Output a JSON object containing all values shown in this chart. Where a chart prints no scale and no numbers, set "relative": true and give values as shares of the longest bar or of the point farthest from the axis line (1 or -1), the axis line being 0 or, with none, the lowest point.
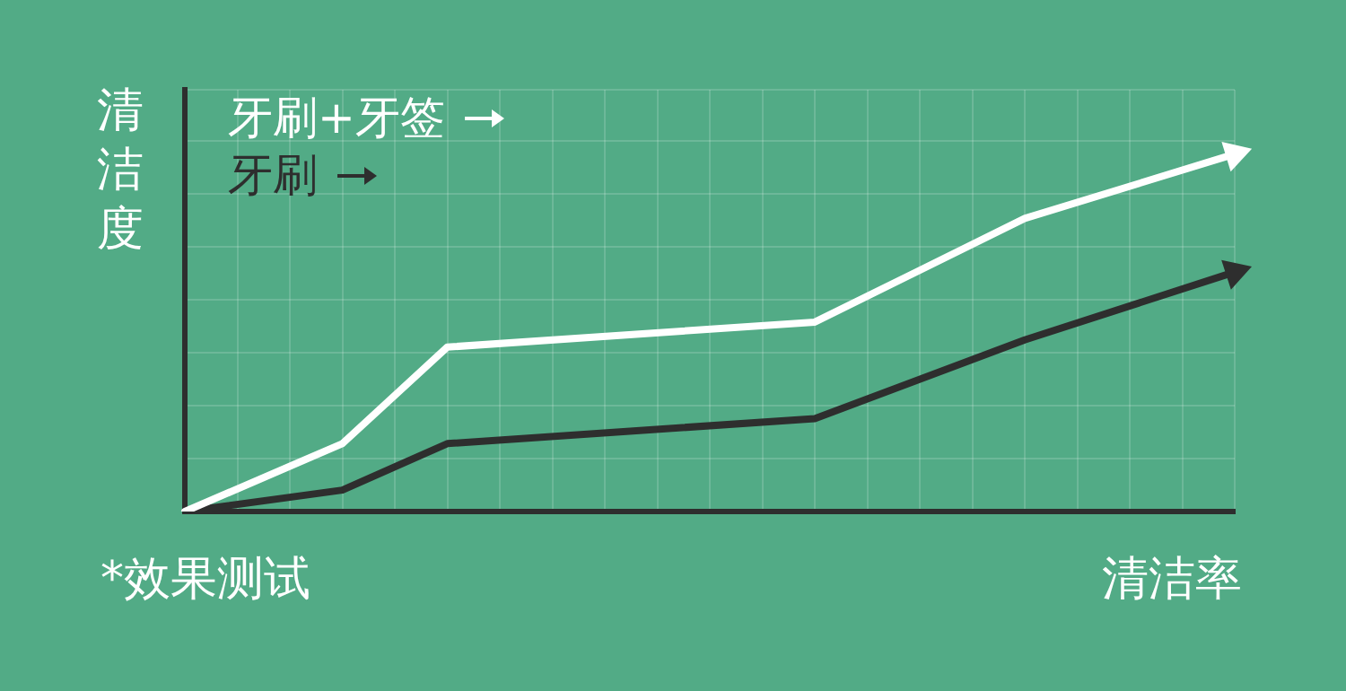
{
  "chart_data": {
    "type": "line",
    "relative": true,
    "ylabel": "清洁度",
    "xlabel": "清洁率",
    "annotations": [
      "*效果测试"
    ],
    "categories": [
      null,
      null,
      null,
      null,
      null,
      null,
      null,
      null,
      null,
      null,
      null,
      null,
      null,
      null,
      null,
      null,
      null,
      null,
      null,
      null,
      null
    ],
    "series": [
      {
        "name": "牙刷+牙签",
        "color": "#ffffff",
        "values": [
          0,
          null,
          null,
          0.19,
          null,
          0.46,
          null,
          null,
          null,
          null,
          null,
          null,
          0.53,
          null,
          null,
          null,
          0.82,
          null,
          null,
          null,
          1
        ]
      },
      {
        "name": "牙刷",
        "color": "#2e2e2e",
        "values": [
          0,
          null,
          null,
          0.06,
          null,
          0.19,
          null,
          null,
          null,
          null,
          null,
          null,
          0.26,
          null,
          null,
          null,
          0.48,
          null,
          null,
          null,
          0.67
        ]
      }
    ],
    "grid": true,
    "legend": "top left",
    "marker": "none",
    "line_style": "solid"
  }
}
